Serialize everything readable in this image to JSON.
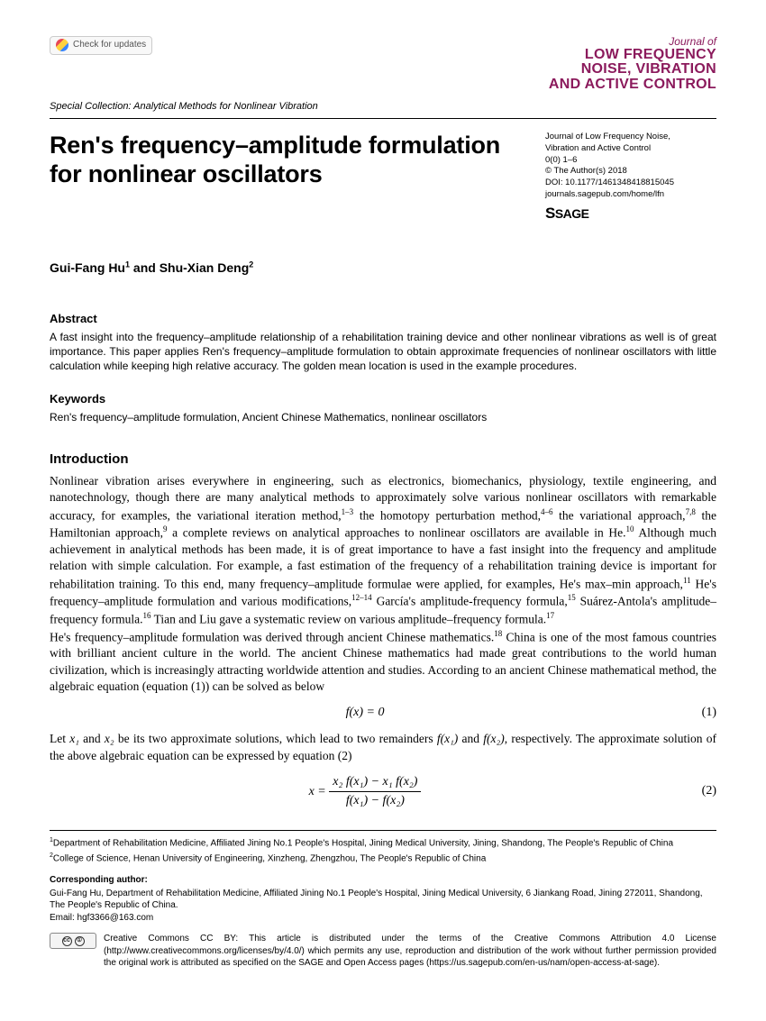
{
  "topbar": {
    "check_updates": "Check for updates"
  },
  "journal": {
    "jof": "Journal of",
    "l1": "LOW FREQUENCY",
    "l2": "NOISE, VIBRATION",
    "l3": "AND ACTIVE CONTROL"
  },
  "collection": "Special Collection: Analytical Methods for Nonlinear Vibration",
  "title": "Ren's frequency–amplitude formulation for nonlinear oscillators",
  "meta": {
    "l1": "Journal of Low Frequency Noise,",
    "l2": "Vibration and Active Control",
    "l3": "0(0) 1–6",
    "l4": "© The Author(s) 2018",
    "l5": "DOI: 10.1177/1461348418815045",
    "l6": "journals.sagepub.com/home/lfn",
    "sage": "SAGE"
  },
  "authors": {
    "a1": "Gui-Fang Hu",
    "s1": "1",
    "and": " and ",
    "a2": "Shu-Xian Deng",
    "s2": "2"
  },
  "abstract": {
    "h": "Abstract",
    "t": "A fast insight into the frequency–amplitude relationship of a rehabilitation training device and other nonlinear vibrations as well is of great importance. This paper applies Ren's frequency–amplitude formulation to obtain approximate frequencies of nonlinear oscillators with little calculation while keeping high relative accuracy. The golden mean location is used in the example procedures."
  },
  "keywords": {
    "h": "Keywords",
    "t": "Ren's frequency–amplitude formulation, Ancient Chinese Mathematics, nonlinear oscillators"
  },
  "intro": {
    "h": "Introduction",
    "p1a": "Nonlinear vibration arises everywhere in engineering, such as electronics, biomechanics, physiology, textile engineering, and nanotechnology, though there are many analytical methods to approximately solve various nonlinear oscillators with remarkable accuracy, for examples, the variational iteration method,",
    "s1": "1–3",
    "p1b": " the homotopy perturbation method,",
    "s2": "4–6",
    "p1c": " the variational approach,",
    "s3": "7,8",
    "p1d": " the Hamiltonian approach,",
    "s4": "9",
    "p1e": " a complete reviews on analytical approaches to nonlinear oscillators are available in He.",
    "s5": "10",
    "p1f": " Although much achievement in analytical methods has been made, it is of great importance to have a fast insight into the frequency and amplitude relation with simple calculation. For example, a fast estimation of the frequency of a rehabilitation training device is important for rehabilitation training. To this end, many frequency–amplitude formulae were applied, for examples, He's max–min approach,",
    "s6": "11",
    "p1g": " He's frequency–amplitude formulation and various modifications,",
    "s7": "12–14",
    "p1h": " García's amplitude-frequency formula,",
    "s8": "15",
    "p1i": " Suárez-Antola's amplitude–frequency formula.",
    "s9": "16",
    "p1j": " Tian and Liu gave a systematic review on various amplitude–frequency formula.",
    "s10": "17",
    "p2a": "He's frequency–amplitude formulation was derived through ancient Chinese mathematics.",
    "s11": "18",
    "p2b": " China is one of the most famous countries with brilliant ancient culture in the world. The ancient Chinese mathematics had made great contributions to the world human civilization, which is increasingly attracting worldwide attention and studies. According to an ancient Chinese mathematical method, the algebraic equation (equation (1)) can be solved as below"
  },
  "eq1": {
    "expr": "f(x) = 0",
    "num": "(1)"
  },
  "let_text_a": "Let ",
  "let_text_b": " and ",
  "let_text_c": " be its two approximate solutions, which lead to two remainders ",
  "let_text_d": " and ",
  "let_text_e": ", respectively. The approximate solution of the above algebraic equation can be expressed by equation (2)",
  "x1": "x₁",
  "x2": "x₂",
  "fx1": "f(x₁)",
  "fx2": "f(x₂)",
  "eq2": {
    "num_expr": "x₂ f(x₁) − x₁ f(x₂)",
    "den_expr": "f(x₁) − f(x₂)",
    "lhs": "x = ",
    "num": "(2)"
  },
  "affiliations": {
    "a1": "Department of Rehabilitation Medicine, Affiliated Jining No.1 People's Hospital, Jining Medical University, Jining, Shandong, The People's Republic of China",
    "a2": "College of Science, Henan University of Engineering, Xinzheng, Zhengzhou, The People's Republic of China"
  },
  "corresponding": {
    "h": "Corresponding author:",
    "t": "Gui-Fang Hu, Department of Rehabilitation Medicine, Affiliated Jining No.1 People's Hospital, Jining Medical University, 6 Jiankang Road, Jining 272011, Shandong, The People's Republic of China.",
    "email": "Email: hgf3366@163.com"
  },
  "cc": {
    "badge_cc": "cc",
    "badge_by": "①",
    "text": "Creative Commons CC BY: This article is distributed under the terms of the Creative Commons Attribution 4.0 License (http://www.creativecommons.org/licenses/by/4.0/) which permits any use, reproduction and distribution of the work without further permission provided the original work is attributed as specified on the SAGE and Open Access pages (https://us.sagepub.com/en-us/nam/open-access-at-sage)."
  }
}
